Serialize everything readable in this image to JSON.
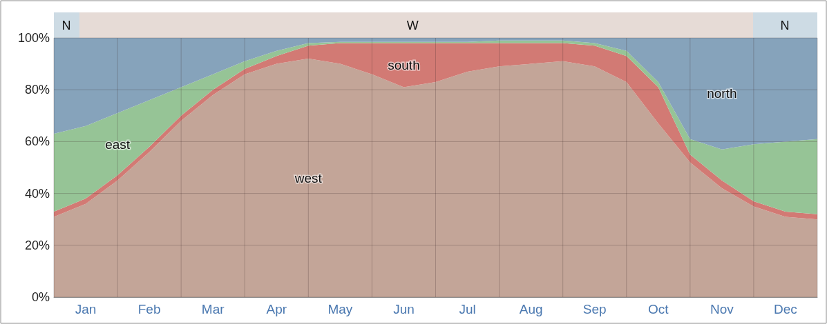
{
  "chart_data": {
    "type": "area",
    "stacked": true,
    "categories": [
      null,
      "Jan",
      null,
      "Feb",
      null,
      "Mar",
      null,
      "Apr",
      null,
      "May",
      null,
      "Jun",
      null,
      "Jul",
      null,
      "Aug",
      null,
      "Sep",
      null,
      "Oct",
      null,
      "Nov",
      null,
      "Dec",
      null
    ],
    "series": [
      {
        "name": "west",
        "color": "#c3a598",
        "values": [
          31,
          36,
          45,
          56,
          68,
          78,
          86,
          90,
          92,
          90,
          86,
          81,
          83,
          87,
          89,
          90,
          91,
          89,
          83,
          67,
          52,
          42,
          35,
          31,
          30
        ]
      },
      {
        "name": "south",
        "color": "#d27a74",
        "values": [
          2,
          2,
          2,
          2,
          2,
          2,
          2,
          3,
          5,
          8,
          12,
          17,
          15,
          11,
          9,
          8,
          7,
          8,
          10,
          14,
          3,
          3,
          2,
          2,
          2
        ]
      },
      {
        "name": "east",
        "color": "#96c496",
        "values": [
          30,
          28,
          24,
          18,
          11,
          6,
          3,
          2,
          1,
          0.5,
          0.5,
          0.5,
          0.5,
          0.5,
          1,
          1,
          1,
          1,
          2,
          2,
          6,
          12,
          22,
          27,
          29
        ]
      },
      {
        "name": "north",
        "color": "#86a3bb",
        "values": [
          37,
          34,
          29,
          24,
          19,
          14,
          9,
          5,
          2,
          1.5,
          1.5,
          1.5,
          1.5,
          1.5,
          1,
          1,
          1,
          2,
          5,
          17,
          39,
          43,
          41,
          40,
          39
        ]
      }
    ],
    "ylim": [
      0,
      100
    ],
    "yticks": [
      {
        "value": 0,
        "label": "0%"
      },
      {
        "value": 20,
        "label": "20%"
      },
      {
        "value": 40,
        "label": "40%"
      },
      {
        "value": 60,
        "label": "60%"
      },
      {
        "value": 80,
        "label": "80%"
      },
      {
        "value": 100,
        "label": "100%"
      }
    ],
    "grid": true,
    "legend": false,
    "annotations": [
      "N",
      "W",
      "N"
    ]
  }
}
